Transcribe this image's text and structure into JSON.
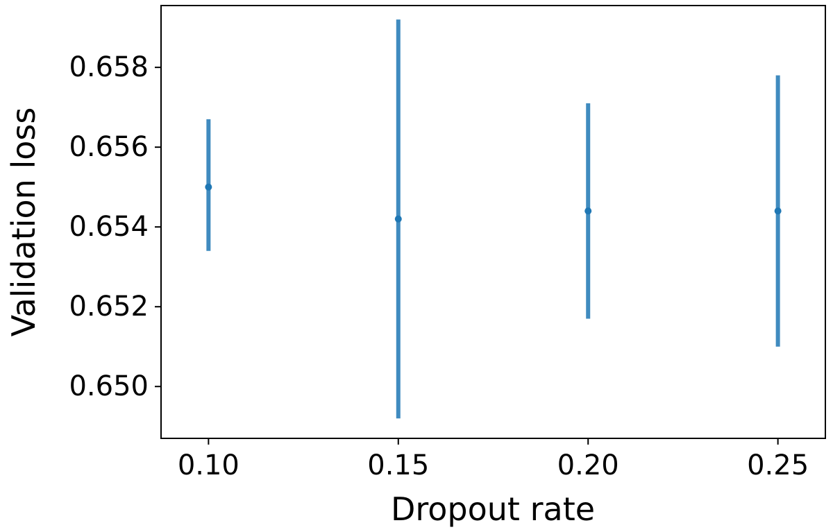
{
  "chart_data": {
    "type": "scatter",
    "title": "",
    "xlabel": "Dropout rate",
    "ylabel": "Validation loss",
    "xlim": [
      0.0875,
      0.2625
    ],
    "ylim": [
      0.6487,
      0.65955
    ],
    "x_ticks": [
      0.1,
      0.15,
      0.2,
      0.25
    ],
    "x_tick_labels": [
      "0.10",
      "0.15",
      "0.20",
      "0.25"
    ],
    "y_ticks": [
      0.65,
      0.652,
      0.654,
      0.656,
      0.658
    ],
    "y_tick_labels": [
      "0.650",
      "0.652",
      "0.654",
      "0.656",
      "0.658"
    ],
    "grid": false,
    "error_bars": true,
    "color": "#1f77b4",
    "series": [
      {
        "x": [
          0.1,
          0.15,
          0.2,
          0.25
        ],
        "y": [
          0.655,
          0.6542,
          0.6544,
          0.6544
        ],
        "y_lower": [
          0.6534,
          0.6492,
          0.6517,
          0.651
        ],
        "y_upper": [
          0.6567,
          0.6592,
          0.6571,
          0.6578
        ]
      }
    ]
  }
}
